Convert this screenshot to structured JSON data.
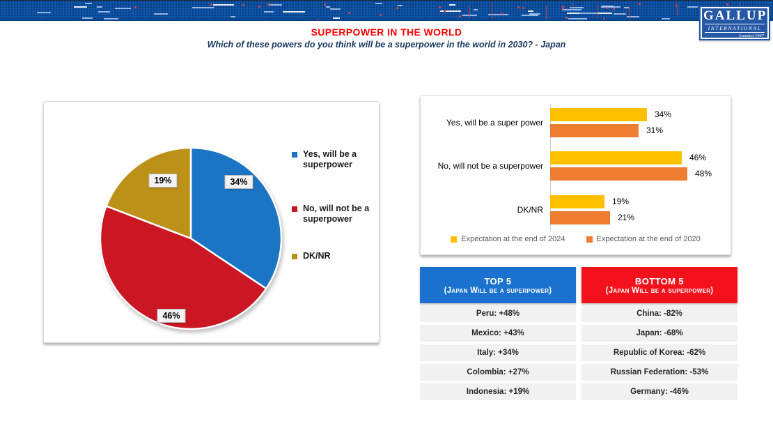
{
  "header": {
    "title": "SUPERPOWER IN THE WORLD",
    "subtitle": "Which of these powers do you think will be a superpower in the world in 2030? - Japan"
  },
  "logo": {
    "name": "GALLUP",
    "sub": "INTERNATIONAL",
    "tagline": "founded 1947"
  },
  "chart_data": [
    {
      "type": "pie",
      "labels": [
        "Yes, will be a superpower",
        "No, will not be a superpower",
        "DK/NR"
      ],
      "values": [
        34,
        46,
        19
      ],
      "value_labels": [
        "34%",
        "46%",
        "19%"
      ],
      "colors": [
        "#1B75C4",
        "#CB1623",
        "#BC9118"
      ],
      "legend_position": "right",
      "start_angle": 0,
      "direction": "clockwise"
    },
    {
      "type": "bar",
      "orientation": "horizontal",
      "categories": [
        "Yes, will be a super power",
        "No, will not be a superpower",
        "DK/NR"
      ],
      "series": [
        {
          "name": "Expectation at the end of 2024",
          "color": "#FFC000",
          "values": [
            34,
            46,
            19
          ]
        },
        {
          "name": "Expectation at the end of 2020",
          "color": "#ED7D31",
          "values": [
            31,
            48,
            21
          ]
        }
      ],
      "value_suffix": "%",
      "xlim": [
        0,
        50
      ],
      "grid": false,
      "legend_position": "bottom"
    }
  ],
  "tables": {
    "top5": {
      "title": "TOP 5",
      "subtitle": "(Japan Will be a superpower)",
      "header_color": "#1B72CE",
      "rows": [
        "Peru: +48%",
        "Mexico: +43%",
        "Italy: +34%",
        "Colombia: +27%",
        "Indonesia: +19%"
      ]
    },
    "bottom5": {
      "title": "BOTTOM 5",
      "subtitle": "(Japan Will be a superpower)",
      "header_color": "#F3121B",
      "rows": [
        "China: -82%",
        "Japan: -68%",
        "Republic of Korea: -62%",
        "Russian Federation: -53%",
        "Germany: -46%"
      ]
    }
  },
  "colors": {
    "banner_blue": "#0C53A8",
    "title_red": "#FF0000",
    "subtitle_navy": "#17375E",
    "row_gray": "#F1F1F1"
  }
}
